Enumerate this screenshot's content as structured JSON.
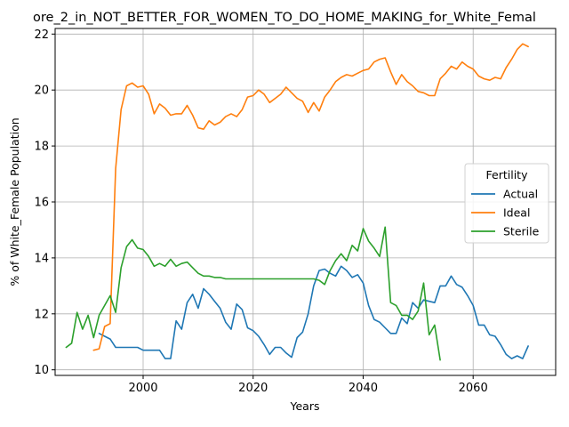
{
  "chart_data": {
    "type": "line",
    "title": "ore_2_in_NOT_BETTER_FOR_WOMEN_TO_DO_HOME_MAKING_for_White_Femal",
    "xlabel": "Years",
    "ylabel": "% of White_Female Population",
    "xlim": [
      1984,
      2075
    ],
    "ylim": [
      9.8,
      22.2
    ],
    "xticks": [
      2000,
      2020,
      2040,
      2060
    ],
    "yticks": [
      10,
      12,
      14,
      16,
      18,
      20,
      22
    ],
    "grid": true,
    "legend": {
      "title": "Fertility",
      "position": "right"
    },
    "colors": {
      "Actual": "#1f77b4",
      "Ideal": "#ff7f0e",
      "Sterile": "#2ca02c"
    },
    "series": [
      {
        "name": "Actual",
        "x": [
          1992,
          1993,
          1994,
          1995,
          1996,
          1997,
          1998,
          1999,
          2000,
          2001,
          2002,
          2003,
          2004,
          2005,
          2006,
          2007,
          2008,
          2009,
          2010,
          2011,
          2012,
          2013,
          2014,
          2015,
          2016,
          2017,
          2018,
          2019,
          2020,
          2021,
          2022,
          2023,
          2024,
          2025,
          2026,
          2027,
          2028,
          2029,
          2030,
          2031,
          2032,
          2033,
          2034,
          2035,
          2036,
          2037,
          2038,
          2039,
          2040,
          2041,
          2042,
          2043,
          2044,
          2045,
          2046,
          2047,
          2048,
          2049,
          2050,
          2051,
          2052,
          2053,
          2054,
          2055,
          2056,
          2057,
          2058,
          2059,
          2060,
          2061,
          2062,
          2063,
          2064,
          2065,
          2066,
          2067,
          2068,
          2069,
          2070
        ],
        "y": [
          11.3,
          11.2,
          11.1,
          10.8,
          10.8,
          10.8,
          10.8,
          10.8,
          10.7,
          10.7,
          10.7,
          10.7,
          10.4,
          10.4,
          11.75,
          11.45,
          12.4,
          12.7,
          12.2,
          12.9,
          12.7,
          12.45,
          12.2,
          11.7,
          11.45,
          12.35,
          12.15,
          11.5,
          11.4,
          11.2,
          10.9,
          10.55,
          10.8,
          10.8,
          10.6,
          10.45,
          11.15,
          11.35,
          12.0,
          13.0,
          13.55,
          13.6,
          13.45,
          13.35,
          13.7,
          13.55,
          13.3,
          13.4,
          13.1,
          12.3,
          11.8,
          11.7,
          11.5,
          11.3,
          11.3,
          11.85,
          11.65,
          12.4,
          12.2,
          12.5,
          12.45,
          12.4,
          13.0,
          13.0,
          13.35,
          13.05,
          12.95,
          12.65,
          12.3,
          11.6,
          11.6,
          11.25,
          11.2,
          10.9,
          10.55,
          10.4,
          10.5,
          10.4,
          10.85
        ]
      },
      {
        "name": "Ideal",
        "x": [
          1991,
          1992,
          1993,
          1994,
          1995,
          1996,
          1997,
          1998,
          1999,
          2000,
          2001,
          2002,
          2003,
          2004,
          2005,
          2006,
          2007,
          2008,
          2009,
          2010,
          2011,
          2012,
          2013,
          2014,
          2015,
          2016,
          2017,
          2018,
          2019,
          2020,
          2021,
          2022,
          2023,
          2024,
          2025,
          2026,
          2027,
          2028,
          2029,
          2030,
          2031,
          2032,
          2033,
          2034,
          2035,
          2036,
          2037,
          2038,
          2039,
          2040,
          2041,
          2042,
          2043,
          2044,
          2045,
          2046,
          2047,
          2048,
          2049,
          2050,
          2051,
          2052,
          2053,
          2054,
          2055,
          2056,
          2057,
          2058,
          2059,
          2060,
          2061,
          2062,
          2063,
          2064,
          2065,
          2066,
          2067,
          2068,
          2069,
          2070
        ],
        "y": [
          10.7,
          10.75,
          11.55,
          11.65,
          17.2,
          19.3,
          20.15,
          20.25,
          20.1,
          20.15,
          19.85,
          19.15,
          19.5,
          19.35,
          19.1,
          19.15,
          19.15,
          19.45,
          19.1,
          18.65,
          18.6,
          18.9,
          18.75,
          18.85,
          19.05,
          19.15,
          19.05,
          19.3,
          19.75,
          19.8,
          20.0,
          19.85,
          19.55,
          19.7,
          19.85,
          20.1,
          19.9,
          19.7,
          19.6,
          19.2,
          19.55,
          19.25,
          19.75,
          20.0,
          20.3,
          20.45,
          20.55,
          20.5,
          20.6,
          20.7,
          20.75,
          21.0,
          21.1,
          21.15,
          20.65,
          20.2,
          20.55,
          20.3,
          20.15,
          19.95,
          19.9,
          19.8,
          19.8,
          20.4,
          20.6,
          20.85,
          20.75,
          21.0,
          20.85,
          20.75,
          20.5,
          20.4,
          20.35,
          20.45,
          20.4,
          20.8,
          21.1,
          21.45,
          21.65,
          21.55
        ]
      },
      {
        "name": "Sterile",
        "x": [
          1986,
          1987,
          1988,
          1989,
          1990,
          1991,
          1992,
          1993,
          1994,
          1995,
          1996,
          1997,
          1998,
          1999,
          2000,
          2001,
          2002,
          2003,
          2004,
          2005,
          2006,
          2007,
          2008,
          2009,
          2010,
          2011,
          2012,
          2013,
          2014,
          2015,
          2016,
          2017,
          2018,
          2019,
          2020,
          2021,
          2022,
          2023,
          2024,
          2025,
          2026,
          2027,
          2028,
          2029,
          2030,
          2031,
          2032,
          2033,
          2034,
          2035,
          2036,
          2037,
          2038,
          2039,
          2040,
          2041,
          2042,
          2043,
          2044,
          2045,
          2046,
          2047,
          2048,
          2049,
          2050,
          2051,
          2052,
          2053,
          2054
        ],
        "y": [
          10.8,
          10.95,
          12.05,
          11.45,
          11.95,
          11.15,
          11.95,
          12.3,
          12.65,
          12.05,
          13.65,
          14.4,
          14.65,
          14.35,
          14.3,
          14.05,
          13.7,
          13.8,
          13.7,
          13.95,
          13.7,
          13.8,
          13.85,
          13.65,
          13.45,
          13.35,
          13.35,
          13.3,
          13.3,
          13.25,
          13.25,
          13.25,
          13.25,
          13.25,
          13.25,
          13.25,
          13.25,
          13.25,
          13.25,
          13.25,
          13.25,
          13.25,
          13.25,
          13.25,
          13.25,
          13.25,
          13.2,
          13.05,
          13.55,
          13.9,
          14.15,
          13.9,
          14.45,
          14.25,
          15.05,
          14.6,
          14.35,
          14.05,
          15.1,
          12.4,
          12.3,
          11.95,
          11.95,
          11.8,
          12.1,
          13.1,
          11.25,
          11.6,
          10.35
        ]
      }
    ]
  }
}
